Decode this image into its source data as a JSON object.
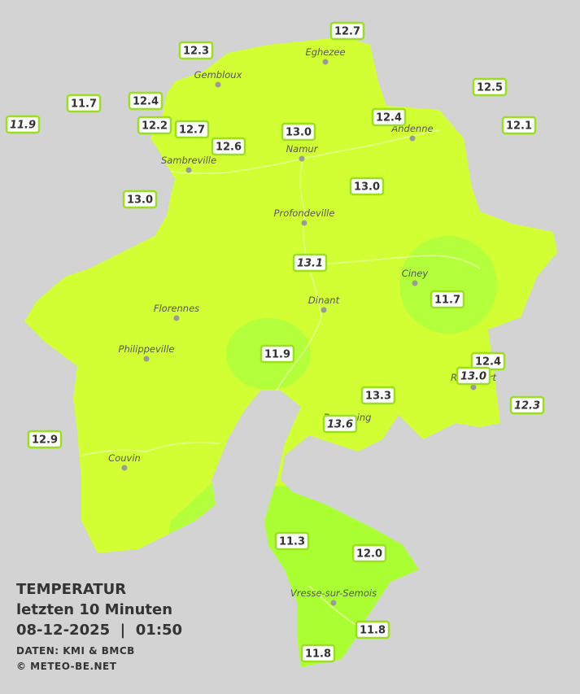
{
  "title": {
    "heading": "TEMPERATUR",
    "subheading": "letzten 10 Minuten",
    "datetime": "08-12-2025  |  01:50",
    "source": "DATEN: KMI & BMCB",
    "copyright": "© METEO-BE.NET"
  },
  "places": [
    "Eghezee",
    "Gembloux",
    "Andenne",
    "Namur",
    "Sambreville",
    "Profondeville",
    "Ciney",
    "Dinant",
    "Florennes",
    "Philippeville",
    "Rochefort",
    "Beauraing",
    "Couvin",
    "Vresse-sur-Semois"
  ],
  "stations": [
    {
      "label": "12.7",
      "italic": false
    },
    {
      "label": "12.3",
      "italic": false
    },
    {
      "label": "12.5",
      "italic": false
    },
    {
      "label": "11.7",
      "italic": false
    },
    {
      "label": "12.4",
      "italic": false
    },
    {
      "label": "11.9",
      "italic": true
    },
    {
      "label": "12.2",
      "italic": false
    },
    {
      "label": "12.7",
      "italic": false
    },
    {
      "label": "12.4",
      "italic": false
    },
    {
      "label": "12.1",
      "italic": false
    },
    {
      "label": "13.0",
      "italic": false
    },
    {
      "label": "12.6",
      "italic": false
    },
    {
      "label": "13.0",
      "italic": false
    },
    {
      "label": "13.0",
      "italic": false
    },
    {
      "label": "13.1",
      "italic": true
    },
    {
      "label": "11.7",
      "italic": false
    },
    {
      "label": "11.9",
      "italic": false
    },
    {
      "label": "12.4",
      "italic": false
    },
    {
      "label": "13.0",
      "italic": true
    },
    {
      "label": "12.3",
      "italic": true
    },
    {
      "label": "13.3",
      "italic": false
    },
    {
      "label": "13.6",
      "italic": true
    },
    {
      "label": "12.9",
      "italic": false
    },
    {
      "label": "11.3",
      "italic": false
    },
    {
      "label": "12.0",
      "italic": false
    },
    {
      "label": "11.8",
      "italic": false
    },
    {
      "label": "11.8",
      "italic": false
    }
  ]
}
